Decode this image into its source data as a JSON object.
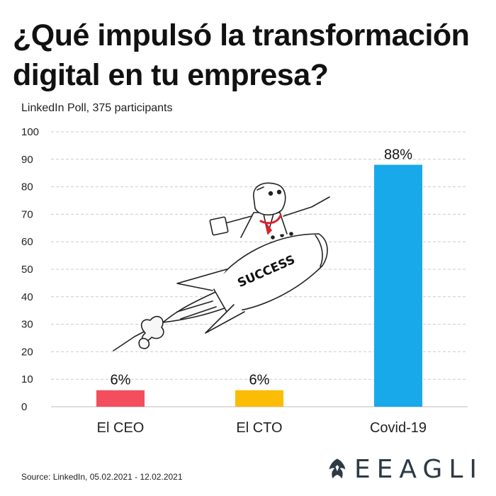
{
  "title": "¿Qué impulsó la transformación digital en tu empresa?",
  "subtitle": "LinkedIn Poll, 375 participants",
  "source": "Source: LinkedIn, 05.02.2021 - 12.02.2021",
  "brand": "EEAGLI",
  "colors": {
    "ceo": "#f24e5e",
    "cto": "#fbbc05",
    "covid": "#18a9ea",
    "grid": "#cccccc",
    "brand": "#2d3a45"
  },
  "chart_data": {
    "type": "bar",
    "categories": [
      "El CEO",
      "El CTO",
      "Covid-19"
    ],
    "values": [
      6,
      6,
      88
    ],
    "data_labels": [
      "6%",
      "6%",
      "88%"
    ],
    "bar_colors": [
      "#f24e5e",
      "#fbbc05",
      "#18a9ea"
    ],
    "ylim": [
      0,
      100
    ],
    "yticks": [
      0,
      10,
      20,
      30,
      40,
      50,
      60,
      70,
      80,
      90,
      100
    ],
    "grid": "horizontal dashed",
    "legend": "none"
  },
  "illustration": {
    "rocket_text": "SUCCESS"
  }
}
